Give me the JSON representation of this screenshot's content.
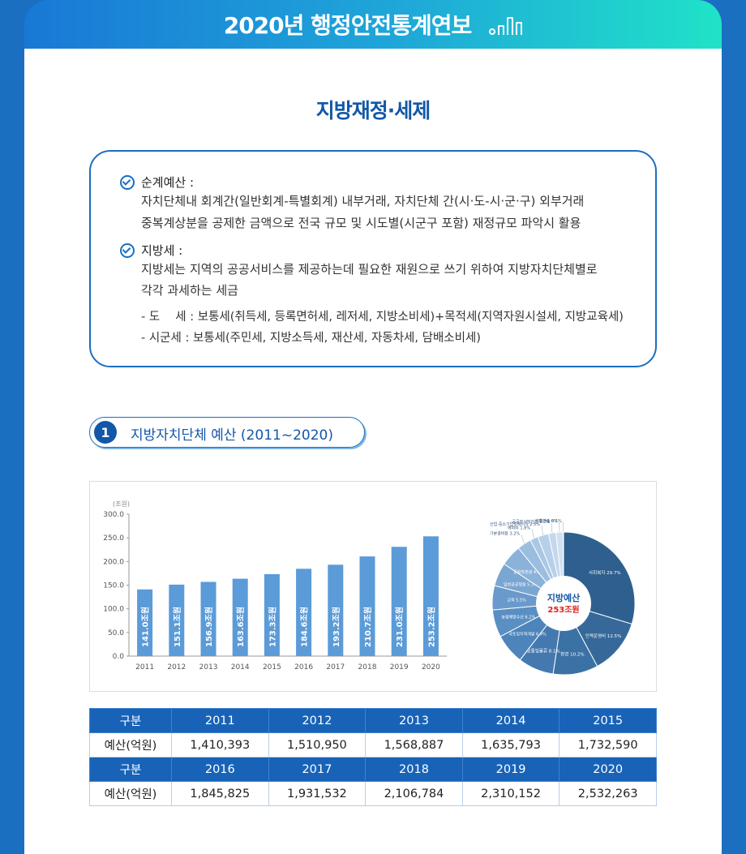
{
  "header": {
    "title": "2020년 행정안전통계연보"
  },
  "section": {
    "title": "지방재정·세제"
  },
  "definitions": {
    "item1": {
      "label": "순계예산 :",
      "line1": "자치단체내 회계간(일반회계-특별회계) 내부거래, 자치단체 간(시·도-시·군·구) 외부거래",
      "line2": "중복계상분을 공제한 금액으로 전국 규모 및 시도별(시군구 포함) 재정규모 파악시 활용"
    },
    "item2": {
      "label": "지방세 :",
      "line1": "지방세는 지역의 공공서비스를 제공하는데 필요한 재원으로 쓰기 위하여 지방자치단체별로",
      "line2": "각각 과세하는 세금",
      "sub1": "- 도　 세 : 보통세(취득세, 등록면허세, 레저세, 지방소비세)+목적세(지역자원시설세, 지방교육세)",
      "sub2": "- 시군세 : 보통세(주민세, 지방소득세, 재산세, 자동차세, 담배소비세)"
    }
  },
  "subsection": {
    "number": "1",
    "title": "지방자치단체 예산 (2011~2020)"
  },
  "chart_data": [
    {
      "type": "bar",
      "unit_label": "(조원)",
      "categories": [
        "2011",
        "2012",
        "2013",
        "2014",
        "2015",
        "2016",
        "2017",
        "2018",
        "2019",
        "2020"
      ],
      "values": [
        141.0,
        151.1,
        156.9,
        163.6,
        173.3,
        184.6,
        193.2,
        210.7,
        231.0,
        253.2
      ],
      "data_labels": [
        "141.0조원",
        "151.1조원",
        "156.9조원",
        "163.6조원",
        "173.3조원",
        "184.6조원",
        "193.2조원",
        "210.7조원",
        "231.0조원",
        "253.2조원"
      ],
      "y_ticks": [
        "0.0",
        "50.0",
        "100.0",
        "150.0",
        "200.0",
        "250.0",
        "300.0"
      ],
      "ylim": [
        0,
        300
      ],
      "color": "#5b9bd8"
    },
    {
      "type": "pie",
      "center_title": "지방예산",
      "center_value": "253조원",
      "slices": [
        {
          "label": "사회복지 29.7%",
          "value": 29.7,
          "color": "#2f5f8f"
        },
        {
          "label": "인력운영비 12.5%",
          "value": 12.5,
          "color": "#36699a"
        },
        {
          "label": "환경 10.2%",
          "value": 10.2,
          "color": "#3b72a5"
        },
        {
          "label": "교통및물류 8.1%",
          "value": 8.1,
          "color": "#4479b0"
        },
        {
          "label": "국토및지역개발 6.9%",
          "value": 6.9,
          "color": "#4d84bb"
        },
        {
          "label": "농림해양수산 6.2%",
          "value": 6.2,
          "color": "#5a8fc4"
        },
        {
          "label": "교육 5.5%",
          "value": 5.5,
          "color": "#6a9acb"
        },
        {
          "label": "일반공공행정 5.3%",
          "value": 5.3,
          "color": "#7aa6d2"
        },
        {
          "label": "문화및관광 4.8%",
          "value": 4.8,
          "color": "#8bb2d9"
        },
        {
          "label": "기본경비등 3.2%",
          "value": 3.2,
          "color": "#9bbde0"
        },
        {
          "label": "예비비 1.8%",
          "value": 1.8,
          "color": "#aac7e5"
        },
        {
          "label": "산업·중소기업및에너지 2.5%",
          "value": 2.5,
          "color": "#b7d0ea"
        },
        {
          "label": "공공질서및안전 1.7%",
          "value": 1.7,
          "color": "#c3d8ee"
        },
        {
          "label": "보건 1.6%",
          "value": 1.6,
          "color": "#cfe0f2"
        },
        {
          "label": "과학기술 0.1%",
          "value": 0.1,
          "color": "#dbe8f6"
        }
      ]
    }
  ],
  "table": {
    "header_label": "구분",
    "row_label": "예산(억원)",
    "years1": [
      "2011",
      "2012",
      "2013",
      "2014",
      "2015"
    ],
    "values1": [
      "1,410,393",
      "1,510,950",
      "1,568,887",
      "1,635,793",
      "1,732,590"
    ],
    "years2": [
      "2016",
      "2017",
      "2018",
      "2019",
      "2020"
    ],
    "values2": [
      "1,845,825",
      "1,931,532",
      "2,106,784",
      "2,310,152",
      "2,532,263"
    ]
  }
}
